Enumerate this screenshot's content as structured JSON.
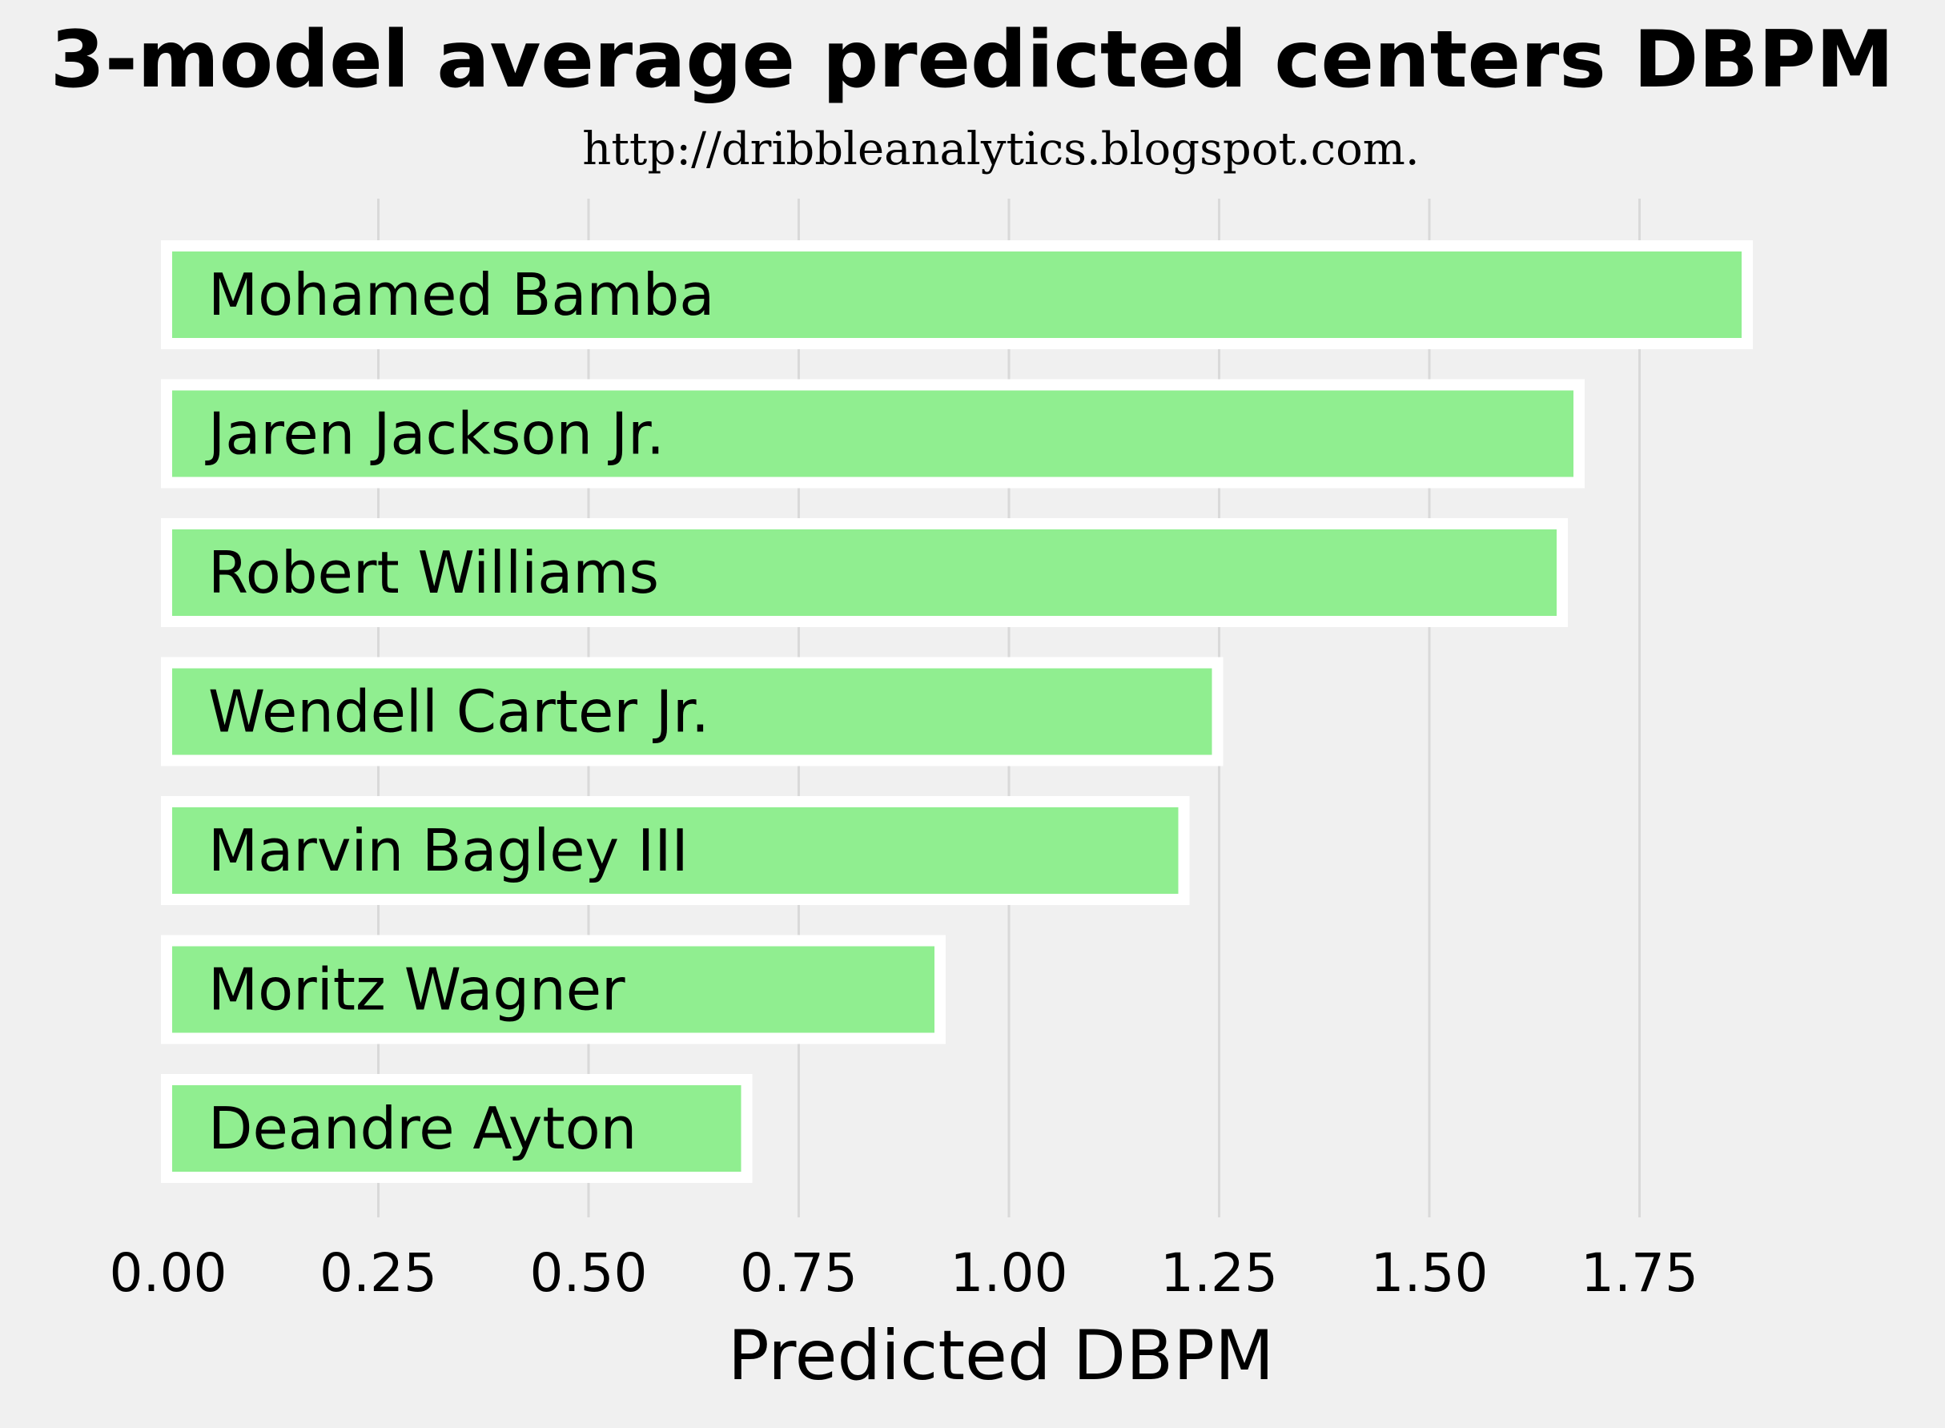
{
  "chart_data": {
    "type": "bar",
    "orientation": "horizontal",
    "title": "3-model average predicted centers DBPM",
    "subtitle": "http://dribbleanalytics.blogspot.com.",
    "xlabel": "Predicted DBPM",
    "ylabel": "",
    "categories": [
      "Mohamed Bamba",
      "Jaren Jackson Jr.",
      "Robert Williams",
      "Wendell Carter Jr.",
      "Marvin Bagley III",
      "Moritz Wagner",
      "Deandre Ayton"
    ],
    "values": [
      1.88,
      1.68,
      1.66,
      1.25,
      1.21,
      0.92,
      0.69
    ],
    "xlim": [
      0,
      1.9
    ],
    "xticks": [
      0,
      0.25,
      0.5,
      0.75,
      1.0,
      1.25,
      1.5,
      1.75
    ],
    "xtick_labels": [
      "0.00",
      "0.25",
      "0.50",
      "0.75",
      "1.00",
      "1.25",
      "1.50",
      "1.75"
    ],
    "grid": "vertical",
    "legend": "none",
    "bar_labels_inside": true
  },
  "colors": {
    "background": "#f0f0f0",
    "bar_fill": "#90ee90",
    "bar_edge": "#ffffff",
    "grid": "#d9d9d9",
    "text": "#000000"
  }
}
